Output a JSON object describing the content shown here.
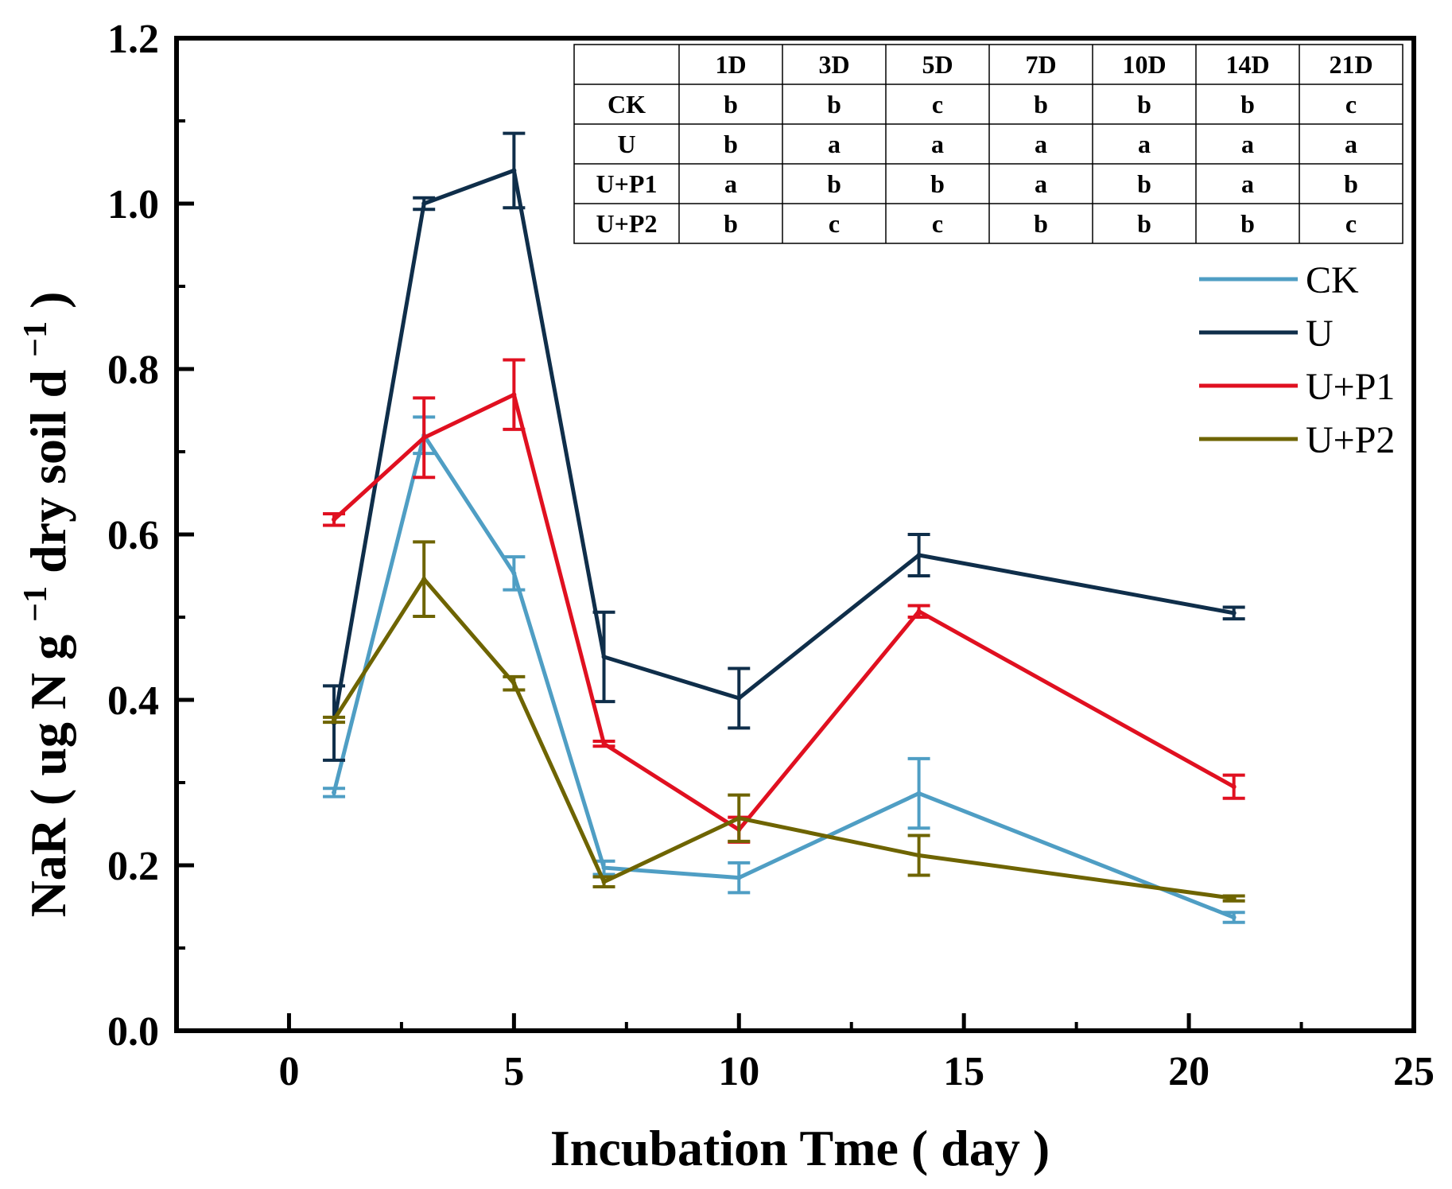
{
  "chart_data": {
    "type": "line",
    "xlabel": "Incubation Tme ( day )",
    "ylabel_main": "NaR ( ug N g",
    "ylabel_sup1": "−1",
    "ylabel_mid": " dry soil d",
    "ylabel_sup2": "−1",
    "ylabel_end": " )",
    "xlim": [
      -2.5,
      25
    ],
    "ylim": [
      0,
      1.2
    ],
    "x_ticks": [
      0,
      5,
      10,
      15,
      20,
      25
    ],
    "x_tick_labels": [
      "0",
      "5",
      "10",
      "15",
      "20",
      "25"
    ],
    "x_minor_ticks": [
      2.5,
      7.5,
      12.5,
      17.5,
      22.5
    ],
    "y_ticks": [
      0,
      0.2,
      0.4,
      0.6,
      0.8,
      1.0,
      1.2
    ],
    "y_tick_labels": [
      "0.0",
      "0.2",
      "0.4",
      "0.6",
      "0.8",
      "1.0",
      "1.2"
    ],
    "x": [
      1,
      3,
      5,
      7,
      10,
      14,
      21
    ],
    "series": [
      {
        "name": "CK",
        "color": "#4f9ec4",
        "values": [
          0.288,
          0.72,
          0.553,
          0.197,
          0.185,
          0.287,
          0.137
        ],
        "errors": [
          0.005,
          0.022,
          0.02,
          0.008,
          0.018,
          0.042,
          0.006
        ]
      },
      {
        "name": "U",
        "color": "#0f2e4a",
        "values": [
          0.372,
          1.0,
          1.04,
          0.452,
          0.402,
          0.575,
          0.505
        ],
        "errors": [
          0.045,
          0.007,
          0.045,
          0.054,
          0.036,
          0.025,
          0.007
        ]
      },
      {
        "name": "U+P1",
        "color": "#e01020",
        "values": [
          0.618,
          0.717,
          0.769,
          0.347,
          0.243,
          0.507,
          0.295
        ],
        "errors": [
          0.007,
          0.048,
          0.042,
          0.003,
          0.015,
          0.007,
          0.014
        ]
      },
      {
        "name": "U+P2",
        "color": "#6e6400",
        "values": [
          0.376,
          0.546,
          0.42,
          0.18,
          0.257,
          0.212,
          0.16
        ],
        "errors": [
          0.003,
          0.045,
          0.008,
          0.006,
          0.028,
          0.024,
          0.003
        ]
      }
    ],
    "legend_position": "upper-right, below table",
    "table": {
      "header": [
        "",
        "1D",
        "3D",
        "5D",
        "7D",
        "10D",
        "14D",
        "21D"
      ],
      "rows": [
        [
          "CK",
          "b",
          "b",
          "c",
          "b",
          "b",
          "b",
          "c"
        ],
        [
          "U",
          "b",
          "a",
          "a",
          "a",
          "a",
          "a",
          "a"
        ],
        [
          "U+P1",
          "a",
          "b",
          "b",
          "a",
          "b",
          "a",
          "b"
        ],
        [
          "U+P2",
          "b",
          "c",
          "c",
          "b",
          "b",
          "b",
          "c"
        ]
      ]
    }
  }
}
